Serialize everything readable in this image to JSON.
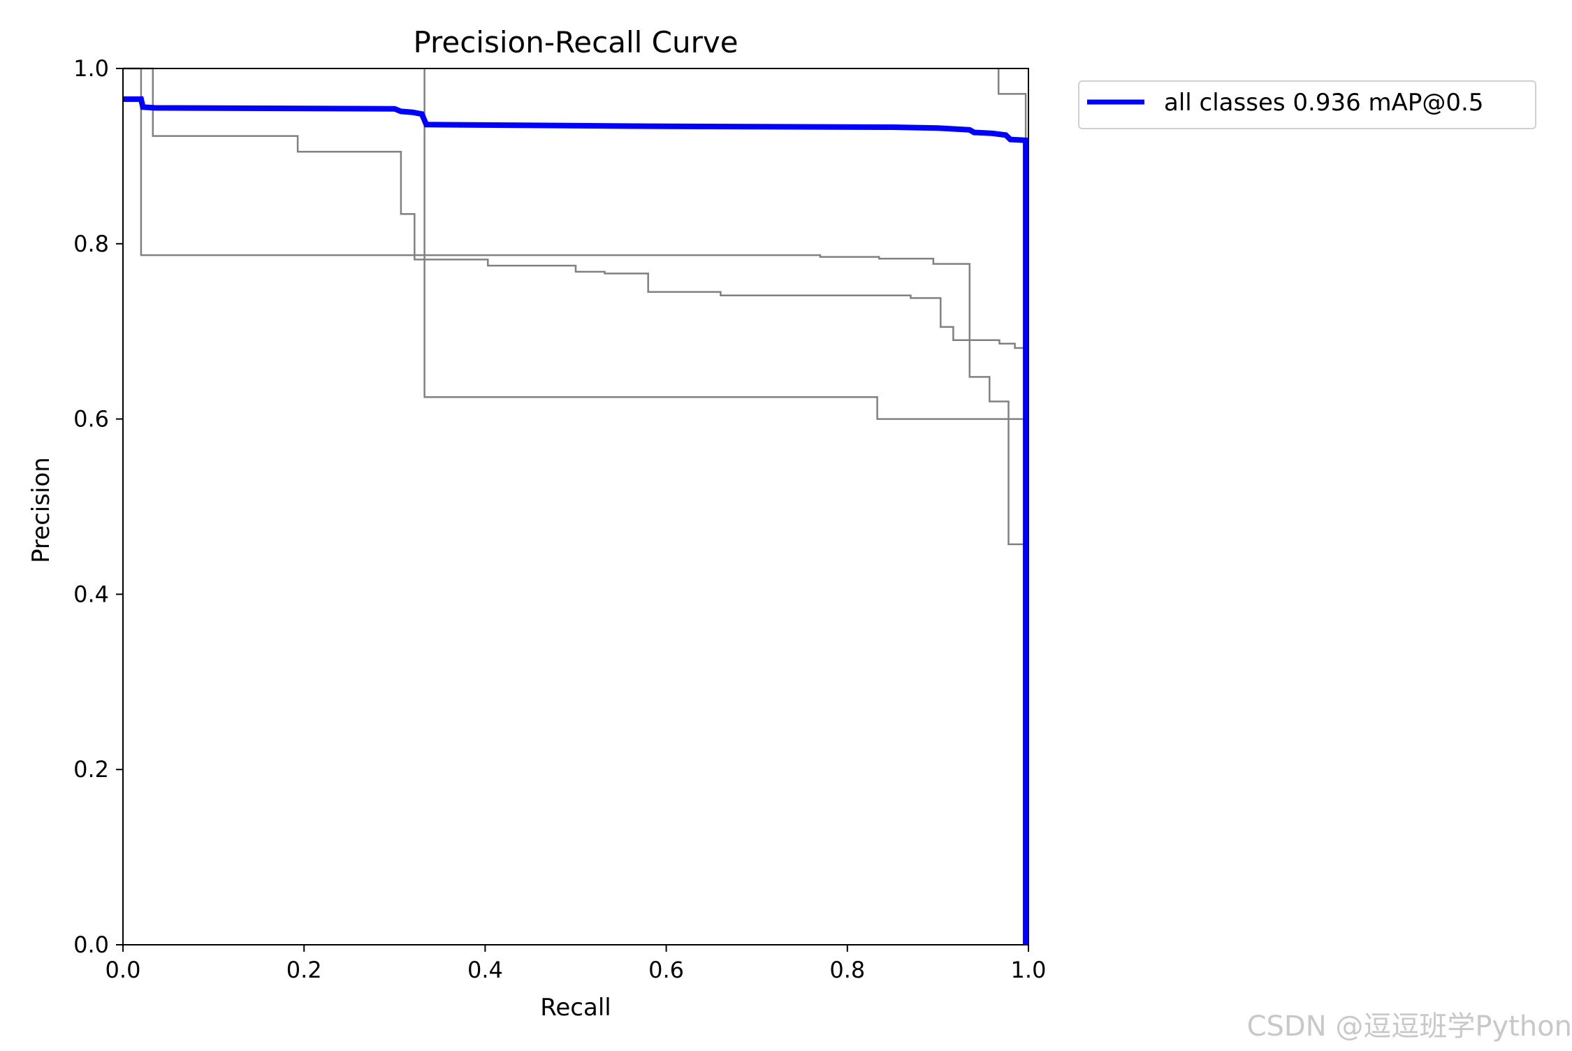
{
  "chart_data": {
    "type": "line",
    "title": "Precision-Recall Curve",
    "xlabel": "Recall",
    "ylabel": "Precision",
    "xlim": [
      0.0,
      1.0
    ],
    "ylim": [
      0.0,
      1.0
    ],
    "xticks": [
      "0.0",
      "0.2",
      "0.4",
      "0.6",
      "0.8",
      "1.0"
    ],
    "yticks": [
      "0.0",
      "0.2",
      "0.4",
      "0.6",
      "0.8",
      "1.0"
    ],
    "grid": false,
    "legend_position": "outside-top-right",
    "series": [
      {
        "name": "",
        "color": "#808080",
        "points": [
          [
            0.0,
            1.0
          ],
          [
            0.02,
            1.0
          ],
          [
            0.02,
            0.787
          ],
          [
            0.77,
            0.787
          ],
          [
            0.77,
            0.785
          ],
          [
            0.835,
            0.785
          ],
          [
            0.835,
            0.783
          ],
          [
            0.895,
            0.783
          ],
          [
            0.895,
            0.777
          ],
          [
            0.935,
            0.777
          ],
          [
            0.935,
            0.648
          ],
          [
            0.957,
            0.648
          ],
          [
            0.957,
            0.62
          ],
          [
            0.978,
            0.62
          ],
          [
            0.978,
            0.457
          ],
          [
            0.995,
            0.457
          ],
          [
            0.995,
            0.0
          ]
        ]
      },
      {
        "name": "",
        "color": "#808080",
        "points": [
          [
            0.0,
            1.0
          ],
          [
            0.033,
            1.0
          ],
          [
            0.033,
            0.923
          ],
          [
            0.193,
            0.923
          ],
          [
            0.193,
            0.905
          ],
          [
            0.307,
            0.905
          ],
          [
            0.307,
            0.834
          ],
          [
            0.322,
            0.834
          ],
          [
            0.322,
            0.782
          ],
          [
            0.403,
            0.782
          ],
          [
            0.403,
            0.775
          ],
          [
            0.5,
            0.775
          ],
          [
            0.5,
            0.768
          ],
          [
            0.532,
            0.768
          ],
          [
            0.532,
            0.766
          ],
          [
            0.58,
            0.766
          ],
          [
            0.58,
            0.745
          ],
          [
            0.66,
            0.745
          ],
          [
            0.66,
            0.741
          ],
          [
            0.87,
            0.741
          ],
          [
            0.87,
            0.738
          ],
          [
            0.903,
            0.738
          ],
          [
            0.903,
            0.705
          ],
          [
            0.917,
            0.705
          ],
          [
            0.917,
            0.69
          ],
          [
            0.968,
            0.69
          ],
          [
            0.968,
            0.686
          ],
          [
            0.985,
            0.686
          ],
          [
            0.985,
            0.681
          ],
          [
            0.997,
            0.681
          ],
          [
            0.997,
            0.0
          ]
        ]
      },
      {
        "name": "",
        "color": "#808080",
        "points": [
          [
            0.333,
            1.0
          ],
          [
            0.333,
            0.625
          ],
          [
            0.833,
            0.625
          ],
          [
            0.833,
            0.6
          ],
          [
            0.997,
            0.6
          ],
          [
            0.997,
            0.0
          ]
        ]
      },
      {
        "name": "",
        "color": "#808080",
        "points": [
          [
            0.967,
            1.0
          ],
          [
            0.967,
            0.971
          ],
          [
            0.997,
            0.971
          ],
          [
            0.997,
            0.0
          ]
        ]
      },
      {
        "name": "all classes 0.936 mAP@0.5",
        "color": "#0000ff",
        "points": [
          [
            0.0,
            0.965
          ],
          [
            0.02,
            0.965
          ],
          [
            0.022,
            0.956
          ],
          [
            0.035,
            0.955
          ],
          [
            0.3,
            0.954
          ],
          [
            0.307,
            0.951
          ],
          [
            0.32,
            0.95
          ],
          [
            0.33,
            0.948
          ],
          [
            0.335,
            0.936
          ],
          [
            0.6,
            0.934
          ],
          [
            0.85,
            0.933
          ],
          [
            0.9,
            0.932
          ],
          [
            0.935,
            0.93
          ],
          [
            0.94,
            0.927
          ],
          [
            0.96,
            0.926
          ],
          [
            0.975,
            0.924
          ],
          [
            0.98,
            0.919
          ],
          [
            0.997,
            0.918
          ],
          [
            0.997,
            0.0
          ]
        ]
      }
    ]
  },
  "watermark": "CSDN @逗逗班学Python"
}
